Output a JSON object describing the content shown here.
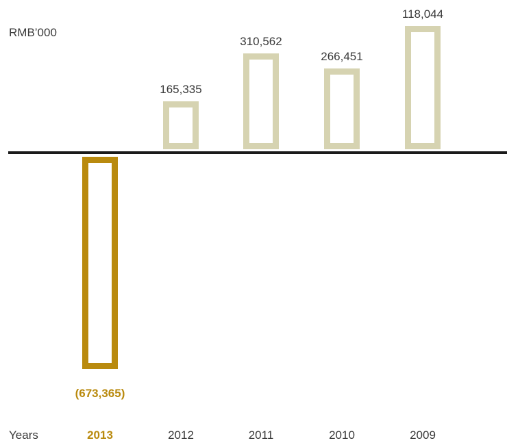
{
  "chart_data": {
    "type": "bar",
    "unit_label": "RMB’000",
    "axis_label": "Years",
    "categories": [
      "2013",
      "2012",
      "2011",
      "2010",
      "2009"
    ],
    "values": [
      -673365,
      165335,
      310562,
      266451,
      118044
    ],
    "value_labels": [
      "(673,365)",
      "165,335",
      "310,562",
      "266,451",
      "118,044"
    ],
    "highlight_category": "2013",
    "colors": {
      "positive": "#d6d3b1",
      "negative": "#b98a0e",
      "axis": "#1a1a1a",
      "text": "#3a3a3a"
    }
  }
}
